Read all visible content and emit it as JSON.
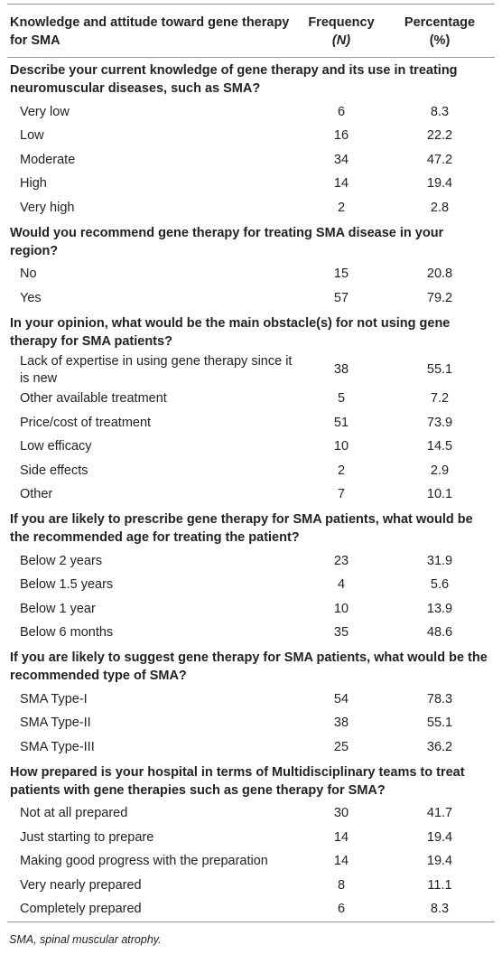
{
  "table": {
    "header": [
      "Knowledge and attitude toward gene therapy for SMA",
      [
        "Frequency",
        "(N)"
      ],
      [
        "Percentage",
        "(%)"
      ]
    ],
    "sections": [
      {
        "question": "Describe your current knowledge of gene therapy and its use in treating neuromuscular diseases, such as SMA?",
        "rows": [
          [
            "Very low",
            6,
            8.3
          ],
          [
            "Low",
            16,
            22.2
          ],
          [
            "Moderate",
            34,
            47.2
          ],
          [
            "High",
            14,
            19.4
          ],
          [
            "Very high",
            2,
            2.8
          ]
        ]
      },
      {
        "question": "Would you recommend gene therapy for treating SMA disease in your region?",
        "rows": [
          [
            "No",
            15,
            20.8
          ],
          [
            "Yes",
            57,
            79.2
          ]
        ]
      },
      {
        "question": "In your opinion, what would be the main obstacle(s) for not using gene therapy for SMA patients?",
        "rows": [
          [
            "Lack of expertise in using gene therapy since it is new",
            38,
            55.1
          ],
          [
            "Other available treatment",
            5,
            7.2
          ],
          [
            "Price/cost of treatment",
            51,
            73.9
          ],
          [
            "Low efficacy",
            10,
            14.5
          ],
          [
            "Side effects",
            2,
            2.9
          ],
          [
            "Other",
            7,
            10.1
          ]
        ]
      },
      {
        "question": "If you are likely to prescribe gene therapy for SMA patients, what would be the recommended age for treating the patient?",
        "rows": [
          [
            "Below 2 years",
            23,
            31.9
          ],
          [
            "Below 1.5 years",
            4,
            5.6
          ],
          [
            "Below 1 year",
            10,
            13.9
          ],
          [
            "Below 6 months",
            35,
            48.6
          ]
        ]
      },
      {
        "question": "If you are likely to suggest gene therapy for SMA patients, what would be the recommended type of SMA?",
        "rows": [
          [
            "SMA Type-I",
            54,
            78.3
          ],
          [
            "SMA Type-II",
            38,
            55.1
          ],
          [
            "SMA Type-III",
            25,
            36.2
          ]
        ]
      },
      {
        "question": "How prepared is your hospital in terms of Multidisciplinary teams to treat patients with gene therapies such as gene therapy for SMA?",
        "rows": [
          [
            "Not at all prepared",
            30,
            41.7
          ],
          [
            "Just starting to prepare",
            14,
            19.4
          ],
          [
            "Making good progress with the preparation",
            14,
            19.4
          ],
          [
            "Very nearly prepared",
            8,
            11.1
          ],
          [
            "Completely prepared",
            6,
            8.3
          ]
        ]
      }
    ],
    "footnote": "SMA, spinal muscular atrophy."
  }
}
